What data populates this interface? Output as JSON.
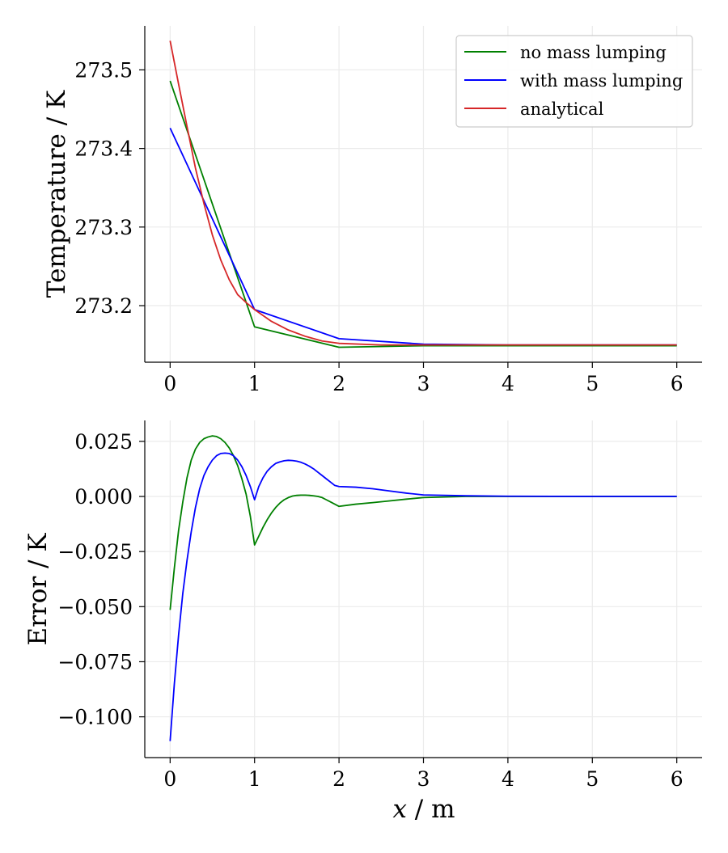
{
  "figure": {
    "xlabel_var": "x",
    "xlabel_unit": " / m"
  },
  "colors": {
    "no_mass_lumping": "#008000",
    "with_mass_lumping": "#0000ff",
    "analytical": "#d62728",
    "grid": "#ebebeb",
    "axis": "#000000"
  },
  "chart_data": [
    {
      "type": "line",
      "title": "",
      "xlabel": "x / m",
      "ylabel": "Temperature / K",
      "xlim": [
        -0.3,
        6.3
      ],
      "ylim": [
        273.128,
        273.556
      ],
      "xticks": [
        0,
        1,
        2,
        3,
        4,
        5,
        6
      ],
      "xtick_labels": [
        "0",
        "1",
        "2",
        "3",
        "4",
        "5",
        "6"
      ],
      "yticks": [
        273.2,
        273.3,
        273.4,
        273.5
      ],
      "ytick_labels": [
        "273.2",
        "273.3",
        "273.4",
        "273.5"
      ],
      "grid": true,
      "legend_position": "top-right",
      "legend": [
        "no mass lumping",
        "with mass lumping",
        "analytical"
      ],
      "series": [
        {
          "name": "no mass lumping",
          "color": "no_mass_lumping",
          "x": [
            0,
            1,
            2,
            3,
            4,
            5,
            6
          ],
          "y": [
            273.486,
            273.173,
            273.147,
            273.149,
            273.149,
            273.149,
            273.149
          ]
        },
        {
          "name": "with mass lumping",
          "color": "with_mass_lumping",
          "x": [
            0,
            1,
            2,
            3,
            4,
            5,
            6
          ],
          "y": [
            273.426,
            273.195,
            273.158,
            273.151,
            273.15,
            273.15,
            273.15
          ]
        },
        {
          "name": "analytical",
          "color": "analytical",
          "x": [
            0,
            0.1,
            0.2,
            0.3,
            0.4,
            0.5,
            0.6,
            0.7,
            0.8,
            0.9,
            1.0,
            1.2,
            1.4,
            1.6,
            1.8,
            2.0,
            2.5,
            3.0,
            4.0,
            5.0,
            6.0
          ],
          "y": [
            273.537,
            273.482,
            273.428,
            273.375,
            273.33,
            273.29,
            273.258,
            273.233,
            273.214,
            273.204,
            273.195,
            273.18,
            273.169,
            273.161,
            273.155,
            273.152,
            273.15,
            273.15,
            273.15,
            273.15,
            273.15
          ]
        }
      ]
    },
    {
      "type": "line",
      "title": "",
      "xlabel": "x / m",
      "ylabel": "Error / K",
      "xlim": [
        -0.3,
        6.3
      ],
      "ylim": [
        -0.1185,
        0.0345
      ],
      "xticks": [
        0,
        1,
        2,
        3,
        4,
        5,
        6
      ],
      "xtick_labels": [
        "0",
        "1",
        "2",
        "3",
        "4",
        "5",
        "6"
      ],
      "yticks": [
        0.025,
        0.0,
        -0.025,
        -0.05,
        -0.075,
        -0.1
      ],
      "ytick_labels": [
        "0.025",
        "0.000",
        "−0.025",
        "−0.050",
        "−0.075",
        "−0.100"
      ],
      "grid": true,
      "series": [
        {
          "name": "no mass lumping",
          "color": "no_mass_lumping",
          "x": [
            0,
            0.05,
            0.1,
            0.15,
            0.2,
            0.25,
            0.3,
            0.35,
            0.4,
            0.45,
            0.5,
            0.55,
            0.6,
            0.65,
            0.7,
            0.75,
            0.8,
            0.85,
            0.9,
            0.95,
            1.0,
            1.05,
            1.1,
            1.15,
            1.2,
            1.25,
            1.3,
            1.35,
            1.4,
            1.45,
            1.5,
            1.55,
            1.6,
            1.65,
            1.7,
            1.75,
            1.8,
            1.85,
            1.9,
            1.95,
            2.0,
            2.2,
            2.4,
            2.6,
            2.8,
            3.0,
            3.5,
            4.0,
            5.0,
            6.0
          ],
          "y": [
            -0.0515,
            -0.0325,
            -0.0155,
            -0.0025,
            0.0085,
            0.0165,
            0.0215,
            0.0245,
            0.0262,
            0.027,
            0.0275,
            0.0272,
            0.0262,
            0.0245,
            0.022,
            0.0185,
            0.014,
            0.008,
            0.001,
            -0.009,
            -0.022,
            -0.018,
            -0.014,
            -0.0105,
            -0.0075,
            -0.005,
            -0.003,
            -0.0015,
            -0.0005,
            0.0002,
            0.0005,
            0.0006,
            0.0006,
            0.0005,
            0.0003,
            0.0,
            -0.0005,
            -0.0015,
            -0.0025,
            -0.0035,
            -0.0045,
            -0.0035,
            -0.0028,
            -0.002,
            -0.0012,
            -0.0005,
            0.0,
            0.0,
            0.0,
            0.0
          ]
        },
        {
          "name": "with mass lumping",
          "color": "with_mass_lumping",
          "x": [
            0,
            0.05,
            0.1,
            0.15,
            0.2,
            0.25,
            0.3,
            0.35,
            0.4,
            0.45,
            0.5,
            0.55,
            0.6,
            0.65,
            0.7,
            0.75,
            0.8,
            0.85,
            0.9,
            0.95,
            1.0,
            1.05,
            1.1,
            1.15,
            1.2,
            1.25,
            1.3,
            1.35,
            1.4,
            1.45,
            1.5,
            1.55,
            1.6,
            1.65,
            1.7,
            1.75,
            1.8,
            1.85,
            1.9,
            1.95,
            2.0,
            2.2,
            2.4,
            2.6,
            2.8,
            3.0,
            3.5,
            4.0,
            5.0,
            6.0
          ],
          "y": [
            -0.111,
            -0.085,
            -0.063,
            -0.044,
            -0.029,
            -0.016,
            -0.005,
            0.0035,
            0.0095,
            0.0135,
            0.0165,
            0.0185,
            0.0195,
            0.0197,
            0.0195,
            0.0185,
            0.0165,
            0.0135,
            0.0095,
            0.0045,
            -0.0015,
            0.0045,
            0.0085,
            0.0115,
            0.0135,
            0.015,
            0.0157,
            0.0162,
            0.0164,
            0.0163,
            0.016,
            0.0155,
            0.0147,
            0.0137,
            0.0125,
            0.011,
            0.0095,
            0.008,
            0.0065,
            0.005,
            0.0045,
            0.0042,
            0.0035,
            0.0025,
            0.0015,
            0.0007,
            0.0003,
            0.0001,
            0.0,
            0.0
          ]
        }
      ]
    }
  ]
}
